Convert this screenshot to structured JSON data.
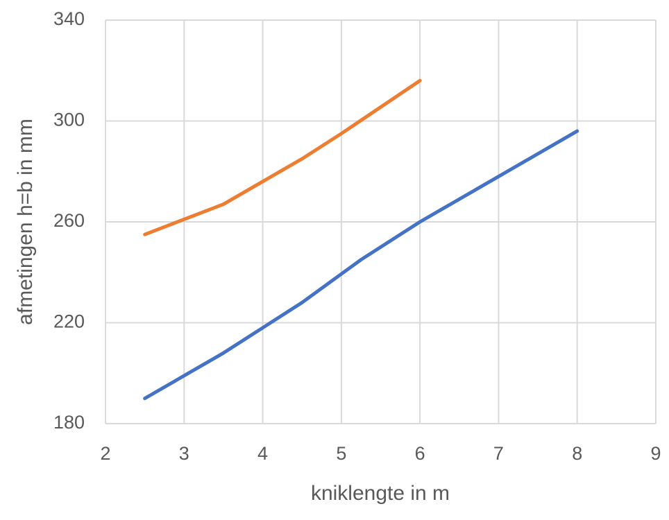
{
  "chart_data": {
    "type": "line",
    "x_label": "kniklengte in m",
    "y_label": "afmetingen h=b in mm",
    "xlim": [
      2,
      9
    ],
    "xticks": [
      2,
      3,
      4,
      5,
      6,
      7,
      8,
      9
    ],
    "ylim": [
      180,
      340
    ],
    "yticks": [
      180,
      220,
      260,
      300,
      340
    ],
    "grid": true,
    "series": [
      {
        "color": "#4472c4",
        "x": [
          2.5,
          3.5,
          4.5,
          5.25,
          6,
          7,
          8
        ],
        "values": [
          190,
          208,
          228,
          245,
          260,
          278,
          296
        ]
      },
      {
        "color": "#ed7d31",
        "x": [
          2.5,
          3.5,
          4.5,
          5,
          6
        ],
        "values": [
          255,
          267,
          285,
          295,
          316
        ]
      }
    ]
  }
}
